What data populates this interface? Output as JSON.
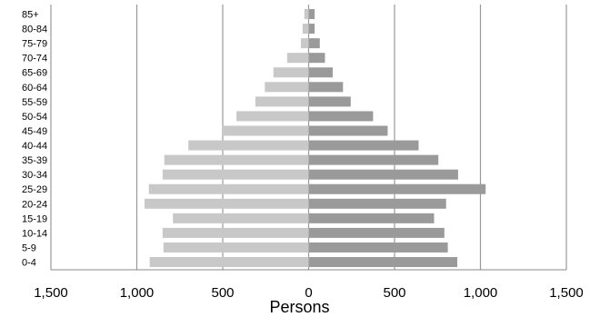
{
  "chart_data": {
    "type": "bar",
    "orientation": "horizontal",
    "style": "population-pyramid",
    "categories": [
      "0-4",
      "5-9",
      "10-14",
      "15-19",
      "20-24",
      "25-29",
      "30-34",
      "35-39",
      "40-44",
      "45-49",
      "50-54",
      "55-59",
      "60-64",
      "65-69",
      "70-74",
      "75-79",
      "80-84",
      "85+"
    ],
    "series": [
      {
        "values": [
          925,
          845,
          850,
          790,
          955,
          930,
          850,
          840,
          700,
          505,
          420,
          310,
          255,
          205,
          125,
          45,
          35,
          25
        ]
      },
      {
        "values": [
          865,
          810,
          790,
          730,
          800,
          1030,
          870,
          755,
          640,
          460,
          375,
          245,
          200,
          140,
          95,
          65,
          35,
          35
        ]
      }
    ],
    "xlabel": "Persons",
    "x_tick_labels": [
      "1,500",
      "1,000",
      "500",
      "0",
      "500",
      "1,000",
      "1,500"
    ],
    "xlim": [
      -1500,
      1500
    ],
    "grid": "vertical",
    "colors": {
      "left": "#c8c8c8",
      "right": "#9a9a9a",
      "grid": "#999999",
      "axis": "#888888"
    }
  }
}
